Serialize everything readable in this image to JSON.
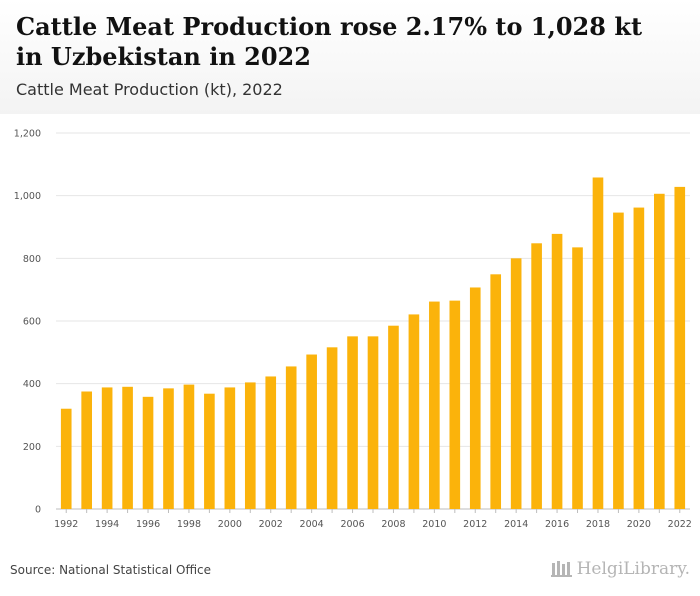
{
  "header": {
    "title": "Cattle Meat Production rose 2.17% to 1,028 kt in Uzbekistan in 2022",
    "subtitle": "Cattle Meat Production (kt), 2022"
  },
  "footer": {
    "source": "Source: National Statistical Office",
    "brand": "HelgiLibrary."
  },
  "colors": {
    "bar": "#FBB30B",
    "grid": "#e6e6e6"
  },
  "chart_data": {
    "type": "bar",
    "categories": [
      "1992",
      "1993",
      "1994",
      "1995",
      "1996",
      "1997",
      "1998",
      "1999",
      "2000",
      "2001",
      "2002",
      "2003",
      "2004",
      "2005",
      "2006",
      "2007",
      "2008",
      "2009",
      "2010",
      "2011",
      "2012",
      "2013",
      "2014",
      "2015",
      "2016",
      "2017",
      "2018",
      "2019",
      "2020",
      "2021",
      "2022"
    ],
    "series": [
      {
        "values": [
          320,
          375,
          388,
          390,
          358,
          385,
          397,
          368,
          388,
          404,
          423,
          455,
          493,
          516,
          551,
          551,
          585,
          621,
          662,
          665,
          707,
          749,
          800,
          848,
          878,
          835,
          1058,
          946,
          962,
          1006,
          1028
        ]
      }
    ],
    "ylim": [
      0,
      1200
    ],
    "yticks": [
      0,
      200,
      400,
      600,
      800,
      1000,
      1200
    ],
    "ytick_labels": [
      "0",
      "200",
      "400",
      "600",
      "800",
      "1,000",
      "1,200"
    ],
    "xtick_labels": [
      "1992",
      "1994",
      "1996",
      "1998",
      "2000",
      "2002",
      "2004",
      "2006",
      "2008",
      "2010",
      "2012",
      "2014",
      "2016",
      "2018",
      "2020",
      "2022"
    ],
    "grid": true,
    "legend": "none"
  }
}
